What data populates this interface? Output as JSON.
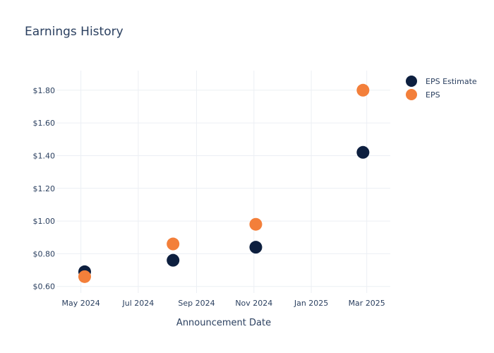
{
  "chart_data": {
    "type": "scatter",
    "title": "Earnings History",
    "xlabel": "Announcement Date",
    "ylabel": "",
    "x_axis_type": "date",
    "xlim": [
      "2024-04-05",
      "2025-03-26"
    ],
    "ylim": [
      0.56,
      1.92
    ],
    "x_ticks": [
      {
        "value": "2024-05-01",
        "label": "May 2024"
      },
      {
        "value": "2024-07-01",
        "label": "Jul 2024"
      },
      {
        "value": "2024-09-01",
        "label": "Sep 2024"
      },
      {
        "value": "2024-11-01",
        "label": "Nov 2024"
      },
      {
        "value": "2025-01-01",
        "label": "Jan 2025"
      },
      {
        "value": "2025-03-01",
        "label": "Mar 2025"
      }
    ],
    "y_ticks": [
      {
        "value": 0.6,
        "label": "$0.60"
      },
      {
        "value": 0.8,
        "label": "$0.80"
      },
      {
        "value": 1.0,
        "label": "$1.00"
      },
      {
        "value": 1.2,
        "label": "$1.20"
      },
      {
        "value": 1.4,
        "label": "$1.40"
      },
      {
        "value": 1.6,
        "label": "$1.60"
      },
      {
        "value": 1.8,
        "label": "$1.80"
      }
    ],
    "grid": true,
    "legend_position": "right-top",
    "series": [
      {
        "name": "EPS Estimate",
        "color": "#0d1f3f",
        "points": [
          {
            "x": "2024-05-05",
            "y": 0.69
          },
          {
            "x": "2024-08-07",
            "y": 0.76
          },
          {
            "x": "2024-11-03",
            "y": 0.84
          },
          {
            "x": "2025-02-25",
            "y": 1.42
          }
        ]
      },
      {
        "name": "EPS",
        "color": "#f37f3a",
        "points": [
          {
            "x": "2024-05-05",
            "y": 0.66
          },
          {
            "x": "2024-08-07",
            "y": 0.86
          },
          {
            "x": "2024-11-03",
            "y": 0.98
          },
          {
            "x": "2025-02-25",
            "y": 1.8
          }
        ]
      }
    ]
  }
}
